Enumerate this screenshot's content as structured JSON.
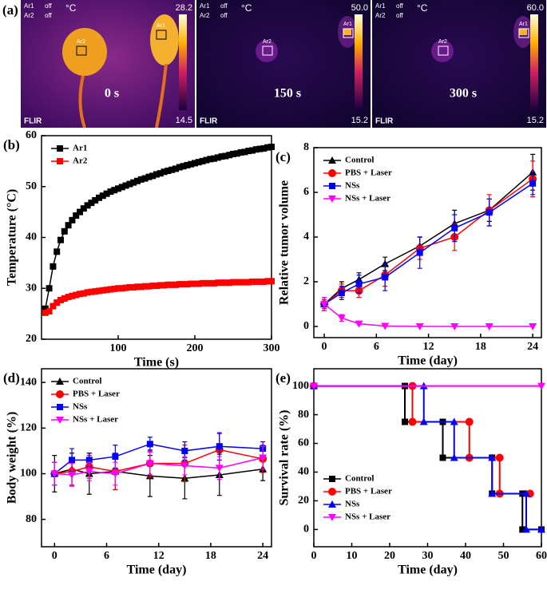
{
  "panel_a": {
    "label": "(a)",
    "images": [
      {
        "ar1_label": "Ar1",
        "ar1_state": "off",
        "ar2_label": "Ar2",
        "ar2_state": "off",
        "unit": "°C",
        "scale_max": "28.2",
        "scale_min": "14.5",
        "time": "0 s",
        "brand": "FLIR",
        "box1": "Ar1",
        "box2": "Ar2"
      },
      {
        "ar1_label": "Ar1",
        "ar1_state": "off",
        "ar2_label": "Ar2",
        "ar2_state": "off",
        "unit": "°C",
        "scale_max": "50.0",
        "scale_min": "15.2",
        "time": "150 s",
        "brand": "FLIR",
        "box1": "Ar1",
        "box2": "Ar2"
      },
      {
        "ar1_label": "Ar1",
        "ar1_state": "off",
        "ar2_label": "Ar2",
        "ar2_state": "off",
        "unit": "°C",
        "scale_max": "60.0",
        "scale_min": "15.2",
        "time": "300 s",
        "brand": "FLIR",
        "box1": "Ar1",
        "box2": "Ar2"
      }
    ]
  },
  "chart_data": [
    {
      "type": "line",
      "label": "(b)",
      "x_label": "Time (s)",
      "y_label": "Temperature (°C)",
      "xlim": [
        0,
        300
      ],
      "xticks": [
        100,
        200,
        300
      ],
      "ylim": [
        20,
        60
      ],
      "yticks": [
        20,
        30,
        40,
        50,
        60
      ],
      "legend": "upper left",
      "x": [
        5,
        10,
        15,
        20,
        25,
        30,
        35,
        40,
        45,
        50,
        55,
        60,
        65,
        70,
        75,
        80,
        85,
        90,
        95,
        100,
        105,
        110,
        115,
        120,
        125,
        130,
        135,
        140,
        145,
        150,
        155,
        160,
        165,
        170,
        175,
        180,
        185,
        190,
        195,
        200,
        205,
        210,
        215,
        220,
        225,
        230,
        235,
        240,
        245,
        250,
        255,
        260,
        265,
        270,
        275,
        280,
        285,
        290,
        295,
        300
      ],
      "series": [
        {
          "name": "Ar1",
          "color": "#000000",
          "marker": "square",
          "values": [
            26.0,
            30.0,
            34.3,
            37.2,
            39.5,
            41.2,
            42.4,
            43.4,
            44.3,
            45.0,
            45.7,
            46.3,
            46.8,
            47.3,
            47.8,
            48.2,
            48.6,
            49.0,
            49.3,
            49.6,
            49.9,
            50.2,
            50.5,
            50.8,
            51.1,
            51.4,
            51.6,
            51.9,
            52.1,
            52.4,
            52.6,
            52.9,
            53.1,
            53.3,
            53.5,
            53.8,
            54.0,
            54.2,
            54.4,
            54.6,
            54.8,
            55.0,
            55.2,
            55.4,
            55.5,
            55.7,
            55.9,
            56.0,
            56.2,
            56.4,
            56.5,
            56.7,
            56.8,
            57.0,
            57.1,
            57.3,
            57.4,
            57.5,
            57.7,
            57.8
          ]
        },
        {
          "name": "Ar2",
          "color": "#ff0000",
          "marker": "square",
          "values": [
            25.2,
            25.5,
            26.5,
            27.2,
            27.7,
            28.0,
            28.3,
            28.5,
            28.7,
            28.9,
            29.0,
            29.2,
            29.3,
            29.4,
            29.5,
            29.6,
            29.7,
            29.8,
            29.9,
            30.0,
            30.0,
            30.1,
            30.2,
            30.2,
            30.3,
            30.3,
            30.4,
            30.4,
            30.5,
            30.5,
            30.6,
            30.6,
            30.7,
            30.7,
            30.7,
            30.8,
            30.8,
            30.8,
            30.9,
            30.9,
            30.9,
            31.0,
            31.0,
            31.0,
            31.0,
            31.1,
            31.1,
            31.1,
            31.1,
            31.2,
            31.2,
            31.2,
            31.2,
            31.2,
            31.3,
            31.3,
            31.3,
            31.3,
            31.4,
            31.4
          ]
        }
      ]
    },
    {
      "type": "line",
      "label": "(c)",
      "x_label": "Time (day)",
      "y_label": "Relative tumor volume",
      "xlim": [
        -1.2,
        25
      ],
      "xticks": [
        0,
        6,
        12,
        18,
        24
      ],
      "ylim": [
        -0.5,
        8
      ],
      "yticks": [
        0,
        2,
        4,
        6,
        8
      ],
      "legend": "upper left",
      "x": [
        0,
        2,
        4,
        7,
        11,
        15,
        19,
        24
      ],
      "series": [
        {
          "name": "Control",
          "color": "#000000",
          "marker": "triangle",
          "values": [
            1,
            1.7,
            2.1,
            2.8,
            3.6,
            4.6,
            5.2,
            6.9
          ],
          "errors": [
            0.3,
            0.3,
            0.3,
            0.3,
            0.4,
            0.6,
            0.5,
            0.8
          ]
        },
        {
          "name": "PBS + Laser",
          "color": "#ff0000",
          "marker": "circle",
          "values": [
            1,
            1.6,
            1.6,
            2.3,
            3.5,
            4.0,
            5.2,
            6.6
          ],
          "errors": [
            0.2,
            0.3,
            0.3,
            0.5,
            0.5,
            0.6,
            0.7,
            0.8
          ]
        },
        {
          "name": "NSs",
          "color": "#0000ff",
          "marker": "square",
          "values": [
            1,
            1.5,
            1.9,
            2.2,
            3.3,
            4.4,
            5.1,
            6.4
          ],
          "errors": [
            0.3,
            0.3,
            0.4,
            0.6,
            0.7,
            0.6,
            0.6,
            0.5
          ]
        },
        {
          "name": "NSs + Laser",
          "color": "#ff00ff",
          "marker": "down",
          "values": [
            1,
            0.38,
            0.12,
            0.02,
            0,
            0,
            0,
            0
          ],
          "errors": [
            0.3,
            0.15,
            0.05,
            0.02,
            0,
            0,
            0,
            0
          ]
        }
      ]
    },
    {
      "type": "line",
      "label": "(d)",
      "x_label": "Time (day)",
      "y_label": "Body weight (%)",
      "xlim": [
        -1.5,
        25
      ],
      "xticks": [
        0,
        6,
        12,
        18,
        24
      ],
      "ylim": [
        68,
        146
      ],
      "yticks": [
        80,
        100,
        120,
        140
      ],
      "legend": "upper left",
      "x": [
        0,
        2,
        4,
        7,
        11,
        15,
        19,
        24
      ],
      "series": [
        {
          "name": "Control",
          "color": "#000000",
          "marker": "triangle",
          "values": [
            100,
            102,
            100,
            101,
            99,
            98,
            99.5,
            102
          ],
          "errors": [
            8,
            7,
            9,
            8,
            9,
            9,
            9,
            5
          ]
        },
        {
          "name": "PBS + Laser",
          "color": "#ff0000",
          "marker": "circle",
          "values": [
            100,
            101,
            103,
            101,
            104.5,
            104.5,
            110.5,
            106.5
          ],
          "errors": [
            5,
            6,
            5,
            8,
            6,
            8,
            7,
            6
          ]
        },
        {
          "name": "NSs",
          "color": "#0000ff",
          "marker": "square",
          "values": [
            100,
            106,
            106,
            107.5,
            113,
            110,
            112,
            111
          ],
          "errors": [
            5,
            5,
            3,
            5,
            3,
            4,
            6,
            3
          ]
        },
        {
          "name": "NSs + Laser",
          "color": "#ff00ff",
          "marker": "down",
          "values": [
            100,
            99.5,
            101,
            100,
            104.5,
            103.5,
            102.5,
            107
          ],
          "errors": [
            5,
            5,
            4,
            5,
            5,
            4,
            5,
            5
          ]
        }
      ]
    },
    {
      "type": "step",
      "label": "(e)",
      "x_label": "Time (day)",
      "y_label": "Survival rate (%)",
      "xlim": [
        0,
        60
      ],
      "xticks": [
        0,
        10,
        20,
        30,
        40,
        50,
        60
      ],
      "ylim": [
        -12,
        112
      ],
      "yticks": [
        0,
        20,
        40,
        60,
        80,
        100
      ],
      "legend": "lower left",
      "series": [
        {
          "name": "Control",
          "color": "#000000",
          "marker": "square",
          "x": [
            0,
            24,
            24,
            34,
            34,
            47,
            47,
            55,
            55,
            60
          ],
          "values": [
            100,
            100,
            75,
            75,
            50,
            50,
            25,
            25,
            0,
            0
          ]
        },
        {
          "name": "PBS + Laser",
          "color": "#ff0000",
          "marker": "circle",
          "x": [
            0,
            26,
            26,
            41,
            41,
            49,
            49,
            57
          ],
          "values": [
            100,
            100,
            75,
            75,
            50,
            50,
            25,
            25
          ]
        },
        {
          "name": "NSs",
          "color": "#0000ff",
          "marker": "triangle",
          "x": [
            0,
            29,
            29,
            37,
            37,
            47,
            47,
            56,
            56,
            60
          ],
          "values": [
            100,
            100,
            75,
            75,
            50,
            50,
            25,
            25,
            0,
            0
          ]
        },
        {
          "name": "NSs + Laser",
          "color": "#ff00ff",
          "marker": "down",
          "x": [
            0,
            60
          ],
          "values": [
            100,
            100
          ]
        }
      ]
    }
  ]
}
